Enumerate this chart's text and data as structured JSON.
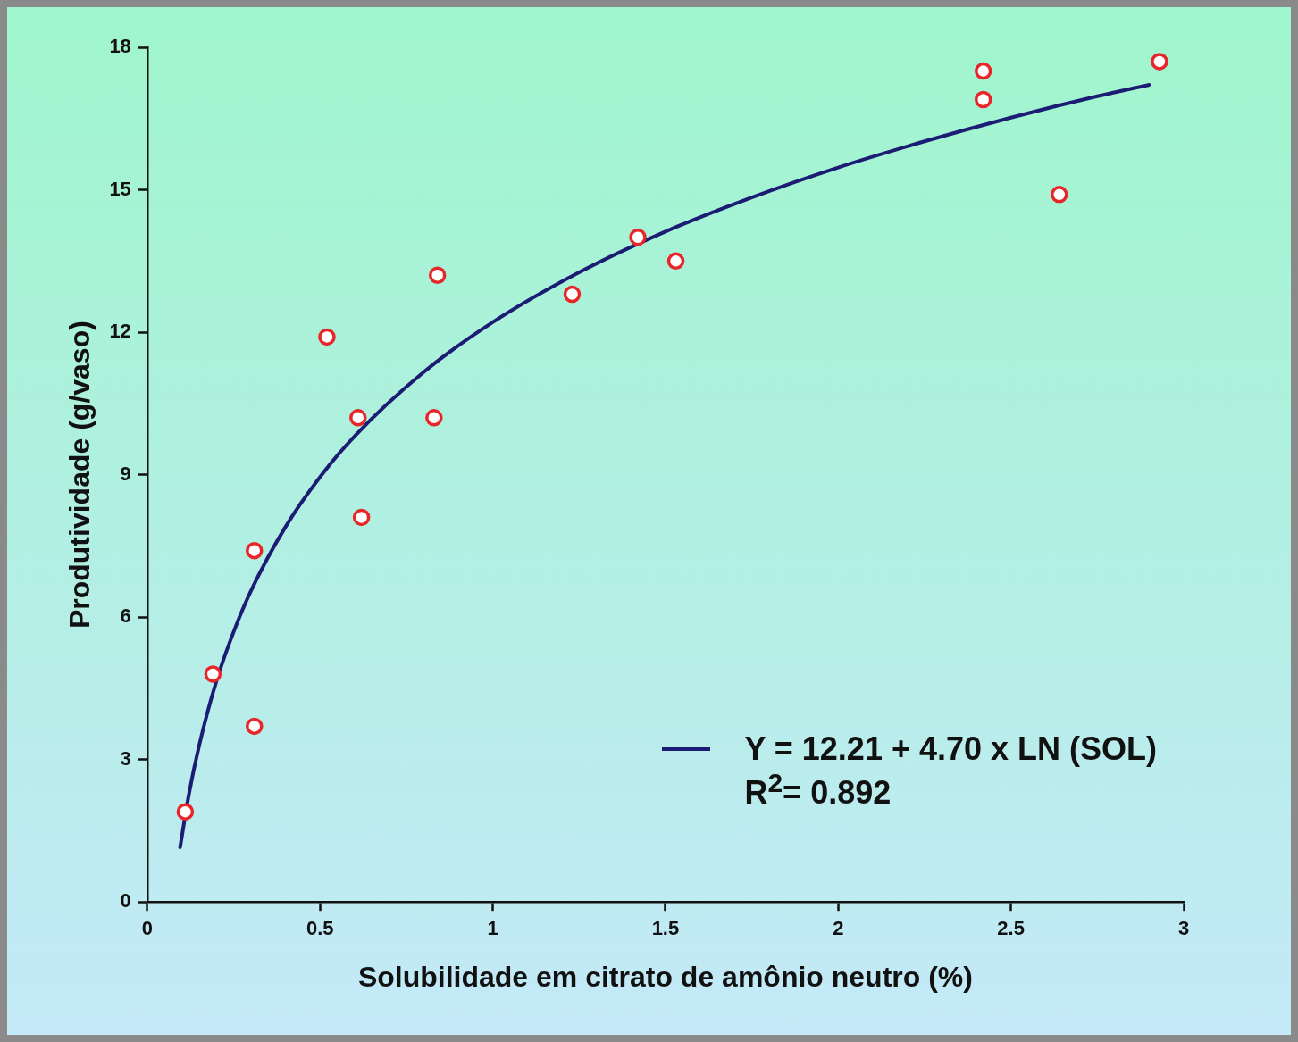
{
  "chart_data": {
    "type": "scatter",
    "xlabel": "Solubilidade em citrato de amônio neutro (%)",
    "ylabel": "Produtividade (g/vaso)",
    "xlim": [
      0,
      3
    ],
    "xticks": [
      0,
      0.5,
      1,
      1.5,
      2,
      2.5,
      3
    ],
    "ylim": [
      0,
      18
    ],
    "yticks": [
      0,
      3,
      6,
      9,
      12,
      15,
      18
    ],
    "legend": "bottom right",
    "marker": "circle",
    "series": [
      {
        "type": "scatter",
        "color": "#e8262a",
        "x": [
          0.11,
          0.19,
          0.31,
          0.31,
          0.52,
          0.61,
          0.62,
          0.83,
          0.84,
          1.23,
          1.42,
          1.53,
          2.42,
          2.42,
          2.64,
          2.93
        ],
        "values": [
          1.9,
          4.8,
          7.4,
          3.7,
          11.9,
          10.2,
          8.1,
          10.2,
          13.2,
          12.8,
          14.0,
          13.5,
          17.5,
          16.9,
          14.9,
          17.7
        ]
      },
      {
        "type": "line",
        "name": "Y = 12.21 + 4.70 x LN (SOL)",
        "color": "#1c1c74",
        "marker": "none",
        "x": [
          0.095,
          0.12,
          0.15,
          0.2,
          0.25,
          0.3,
          0.4,
          0.5,
          0.6,
          0.8,
          1,
          1.25,
          1.5,
          1.75,
          2,
          2.25,
          2.5,
          2.75,
          2.9
        ],
        "values": [
          1.15,
          2.25,
          3.29,
          4.65,
          5.69,
          6.55,
          7.9,
          8.95,
          9.81,
          11.16,
          12.21,
          13.26,
          14.12,
          14.84,
          15.47,
          16.02,
          16.52,
          16.97,
          17.21
        ]
      }
    ],
    "annotations": [
      "R$^{2}$= 0.892"
    ]
  }
}
